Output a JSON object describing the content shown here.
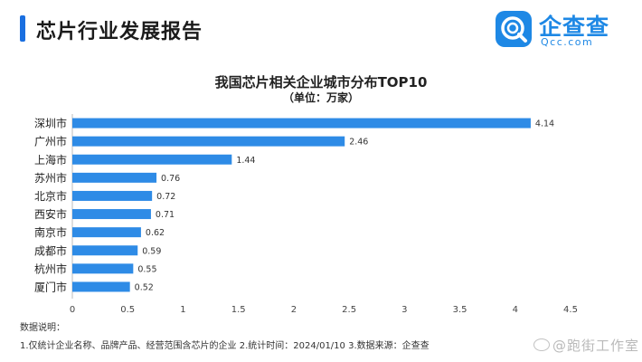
{
  "header": {
    "title": "芯片行业发展报告",
    "logo_name": "企查查",
    "logo_sub": "Qcc.com"
  },
  "chart_data": {
    "type": "bar",
    "orientation": "horizontal",
    "title": "我国芯片相关企业城市分布TOP10",
    "subtitle": "（单位：万家）",
    "categories": [
      "深圳市",
      "广州市",
      "上海市",
      "苏州市",
      "北京市",
      "西安市",
      "南京市",
      "成都市",
      "杭州市",
      "厦门市"
    ],
    "values": [
      4.14,
      2.46,
      1.44,
      0.76,
      0.72,
      0.71,
      0.62,
      0.59,
      0.55,
      0.52
    ],
    "value_labels": [
      "4.14",
      "2.46",
      "1.44",
      "0.76",
      "0.72",
      "0.71",
      "0.62",
      "0.59",
      "0.55",
      "0.52"
    ],
    "xlim": [
      0,
      4.5
    ],
    "xticks": [
      "0",
      "0.5",
      "1",
      "1.5",
      "2",
      "2.5",
      "3",
      "3.5",
      "4",
      "4.5"
    ],
    "grid": false,
    "legend": "none",
    "bar_color": "#2e8be6"
  },
  "notes": {
    "heading": "数据说明：",
    "line1": "1.仅统计企业名称、品牌产品、经营范围含芯片的企业  2.统计时间：2024/01/10  3.数据来源：企查查"
  },
  "watermark": "@跑街工作室"
}
